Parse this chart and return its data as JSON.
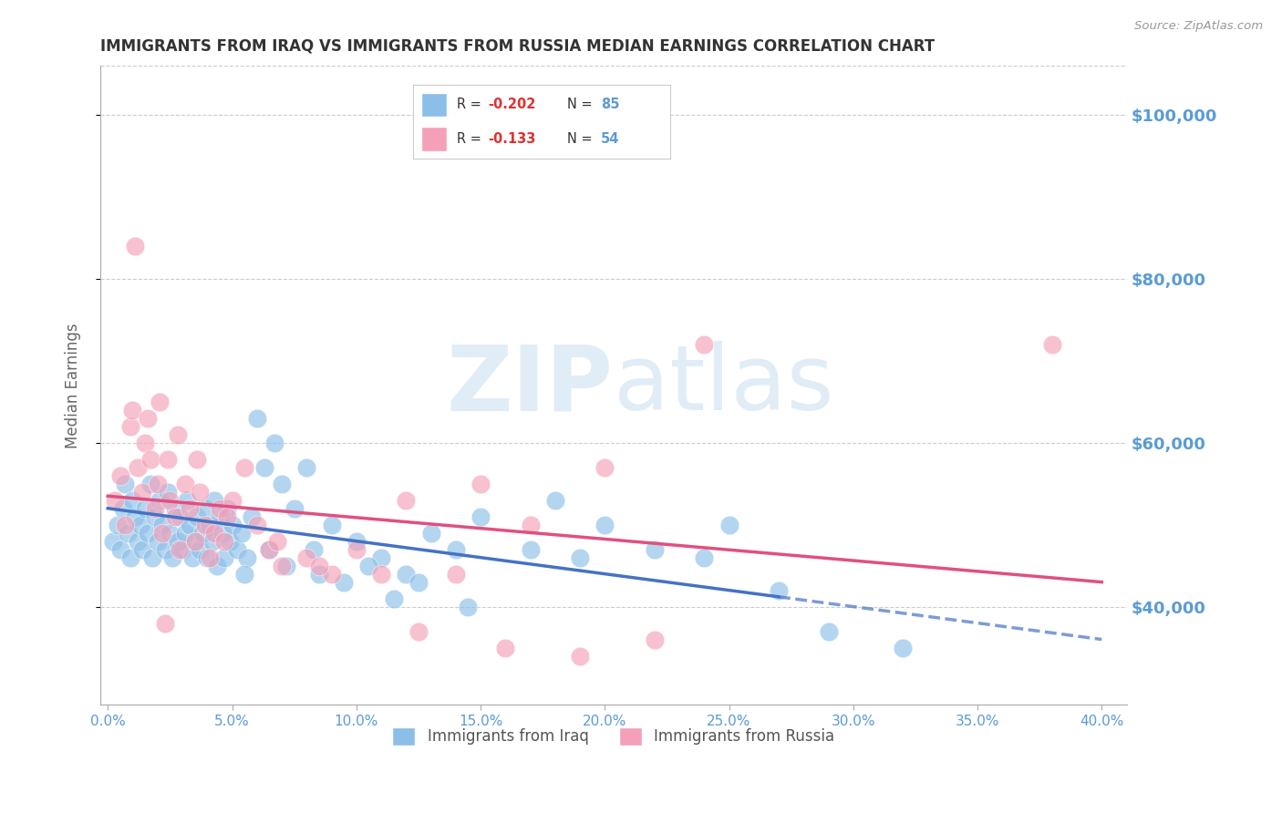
{
  "title": "IMMIGRANTS FROM IRAQ VS IMMIGRANTS FROM RUSSIA MEDIAN EARNINGS CORRELATION CHART",
  "source": "Source: ZipAtlas.com",
  "ylabel": "Median Earnings",
  "xlabel_ticks": [
    "0.0%",
    "5.0%",
    "10.0%",
    "15.0%",
    "20.0%",
    "25.0%",
    "30.0%",
    "35.0%",
    "40.0%"
  ],
  "xlabel_vals": [
    0.0,
    5.0,
    10.0,
    15.0,
    20.0,
    25.0,
    30.0,
    35.0,
    40.0
  ],
  "ylabel_ticks": [
    40000,
    60000,
    80000,
    100000
  ],
  "ylabel_labels": [
    "$40,000",
    "$60,000",
    "$80,000",
    "$100,000"
  ],
  "ylim": [
    28000,
    106000
  ],
  "xlim": [
    -0.3,
    41.0
  ],
  "iraq_color": "#8bbfe8",
  "russia_color": "#f4a0b8",
  "iraq_line_color": "#4472c4",
  "russia_line_color": "#e05080",
  "iraq_R": -0.202,
  "iraq_N": 85,
  "russia_R": -0.133,
  "russia_N": 54,
  "title_color": "#333333",
  "axis_label_color": "#5b9bd5",
  "grid_color": "#cccccc",
  "watermark_zip": "ZIP",
  "watermark_atlas": "atlas",
  "iraq_scatter_x": [
    0.2,
    0.4,
    0.5,
    0.6,
    0.7,
    0.8,
    0.9,
    1.0,
    1.1,
    1.2,
    1.3,
    1.4,
    1.5,
    1.6,
    1.7,
    1.8,
    1.9,
    2.0,
    2.1,
    2.2,
    2.3,
    2.4,
    2.5,
    2.6,
    2.7,
    2.8,
    2.9,
    3.0,
    3.1,
    3.2,
    3.3,
    3.4,
    3.5,
    3.6,
    3.7,
    3.8,
    3.9,
    4.0,
    4.1,
    4.2,
    4.3,
    4.4,
    4.5,
    4.6,
    4.7,
    4.8,
    4.9,
    5.0,
    5.2,
    5.4,
    5.6,
    5.8,
    6.0,
    6.3,
    6.7,
    7.0,
    7.5,
    8.0,
    8.5,
    9.0,
    10.0,
    11.0,
    12.0,
    13.0,
    14.0,
    15.0,
    17.0,
    18.0,
    19.0,
    20.0,
    22.0,
    25.0,
    5.5,
    6.5,
    7.2,
    8.3,
    9.5,
    10.5,
    11.5,
    12.5,
    14.5,
    24.0,
    27.0,
    29.0,
    32.0
  ],
  "iraq_scatter_y": [
    48000,
    50000,
    47000,
    52000,
    55000,
    49000,
    46000,
    53000,
    51000,
    48000,
    50000,
    47000,
    52000,
    49000,
    55000,
    46000,
    51000,
    48000,
    53000,
    50000,
    47000,
    54000,
    49000,
    46000,
    52000,
    48000,
    51000,
    47000,
    49000,
    53000,
    50000,
    46000,
    48000,
    51000,
    47000,
    49000,
    52000,
    46000,
    50000,
    48000,
    53000,
    45000,
    51000,
    49000,
    46000,
    52000,
    48000,
    50000,
    47000,
    49000,
    46000,
    51000,
    63000,
    57000,
    60000,
    55000,
    52000,
    57000,
    44000,
    50000,
    48000,
    46000,
    44000,
    49000,
    47000,
    51000,
    47000,
    53000,
    46000,
    50000,
    47000,
    50000,
    44000,
    47000,
    45000,
    47000,
    43000,
    45000,
    41000,
    43000,
    40000,
    46000,
    42000,
    37000,
    35000
  ],
  "russia_scatter_x": [
    0.3,
    0.5,
    0.7,
    0.9,
    1.0,
    1.2,
    1.4,
    1.5,
    1.7,
    1.9,
    2.0,
    2.2,
    2.4,
    2.5,
    2.7,
    2.9,
    3.1,
    3.3,
    3.5,
    3.7,
    3.9,
    4.1,
    4.3,
    4.5,
    4.7,
    5.0,
    5.5,
    6.0,
    6.5,
    7.0,
    8.0,
    9.0,
    10.0,
    11.0,
    12.0,
    14.0,
    15.0,
    17.0,
    20.0,
    22.0,
    24.0,
    1.6,
    2.1,
    2.8,
    3.6,
    4.8,
    6.8,
    8.5,
    12.5,
    16.0,
    19.0,
    38.0,
    2.3,
    1.1
  ],
  "russia_scatter_y": [
    53000,
    56000,
    50000,
    62000,
    64000,
    57000,
    54000,
    60000,
    58000,
    52000,
    55000,
    49000,
    58000,
    53000,
    51000,
    47000,
    55000,
    52000,
    48000,
    54000,
    50000,
    46000,
    49000,
    52000,
    48000,
    53000,
    57000,
    50000,
    47000,
    45000,
    46000,
    44000,
    47000,
    44000,
    53000,
    44000,
    55000,
    50000,
    57000,
    36000,
    72000,
    63000,
    65000,
    61000,
    58000,
    51000,
    48000,
    45000,
    37000,
    35000,
    34000,
    72000,
    38000,
    84000
  ],
  "iraq_trend_x0": 0.0,
  "iraq_trend_y0": 52000,
  "iraq_trend_x1": 40.0,
  "iraq_trend_y1": 36000,
  "iraq_solid_end": 27.0,
  "russia_trend_x0": 0.0,
  "russia_trend_y0": 53500,
  "russia_trend_x1": 40.0,
  "russia_trend_y1": 43000
}
